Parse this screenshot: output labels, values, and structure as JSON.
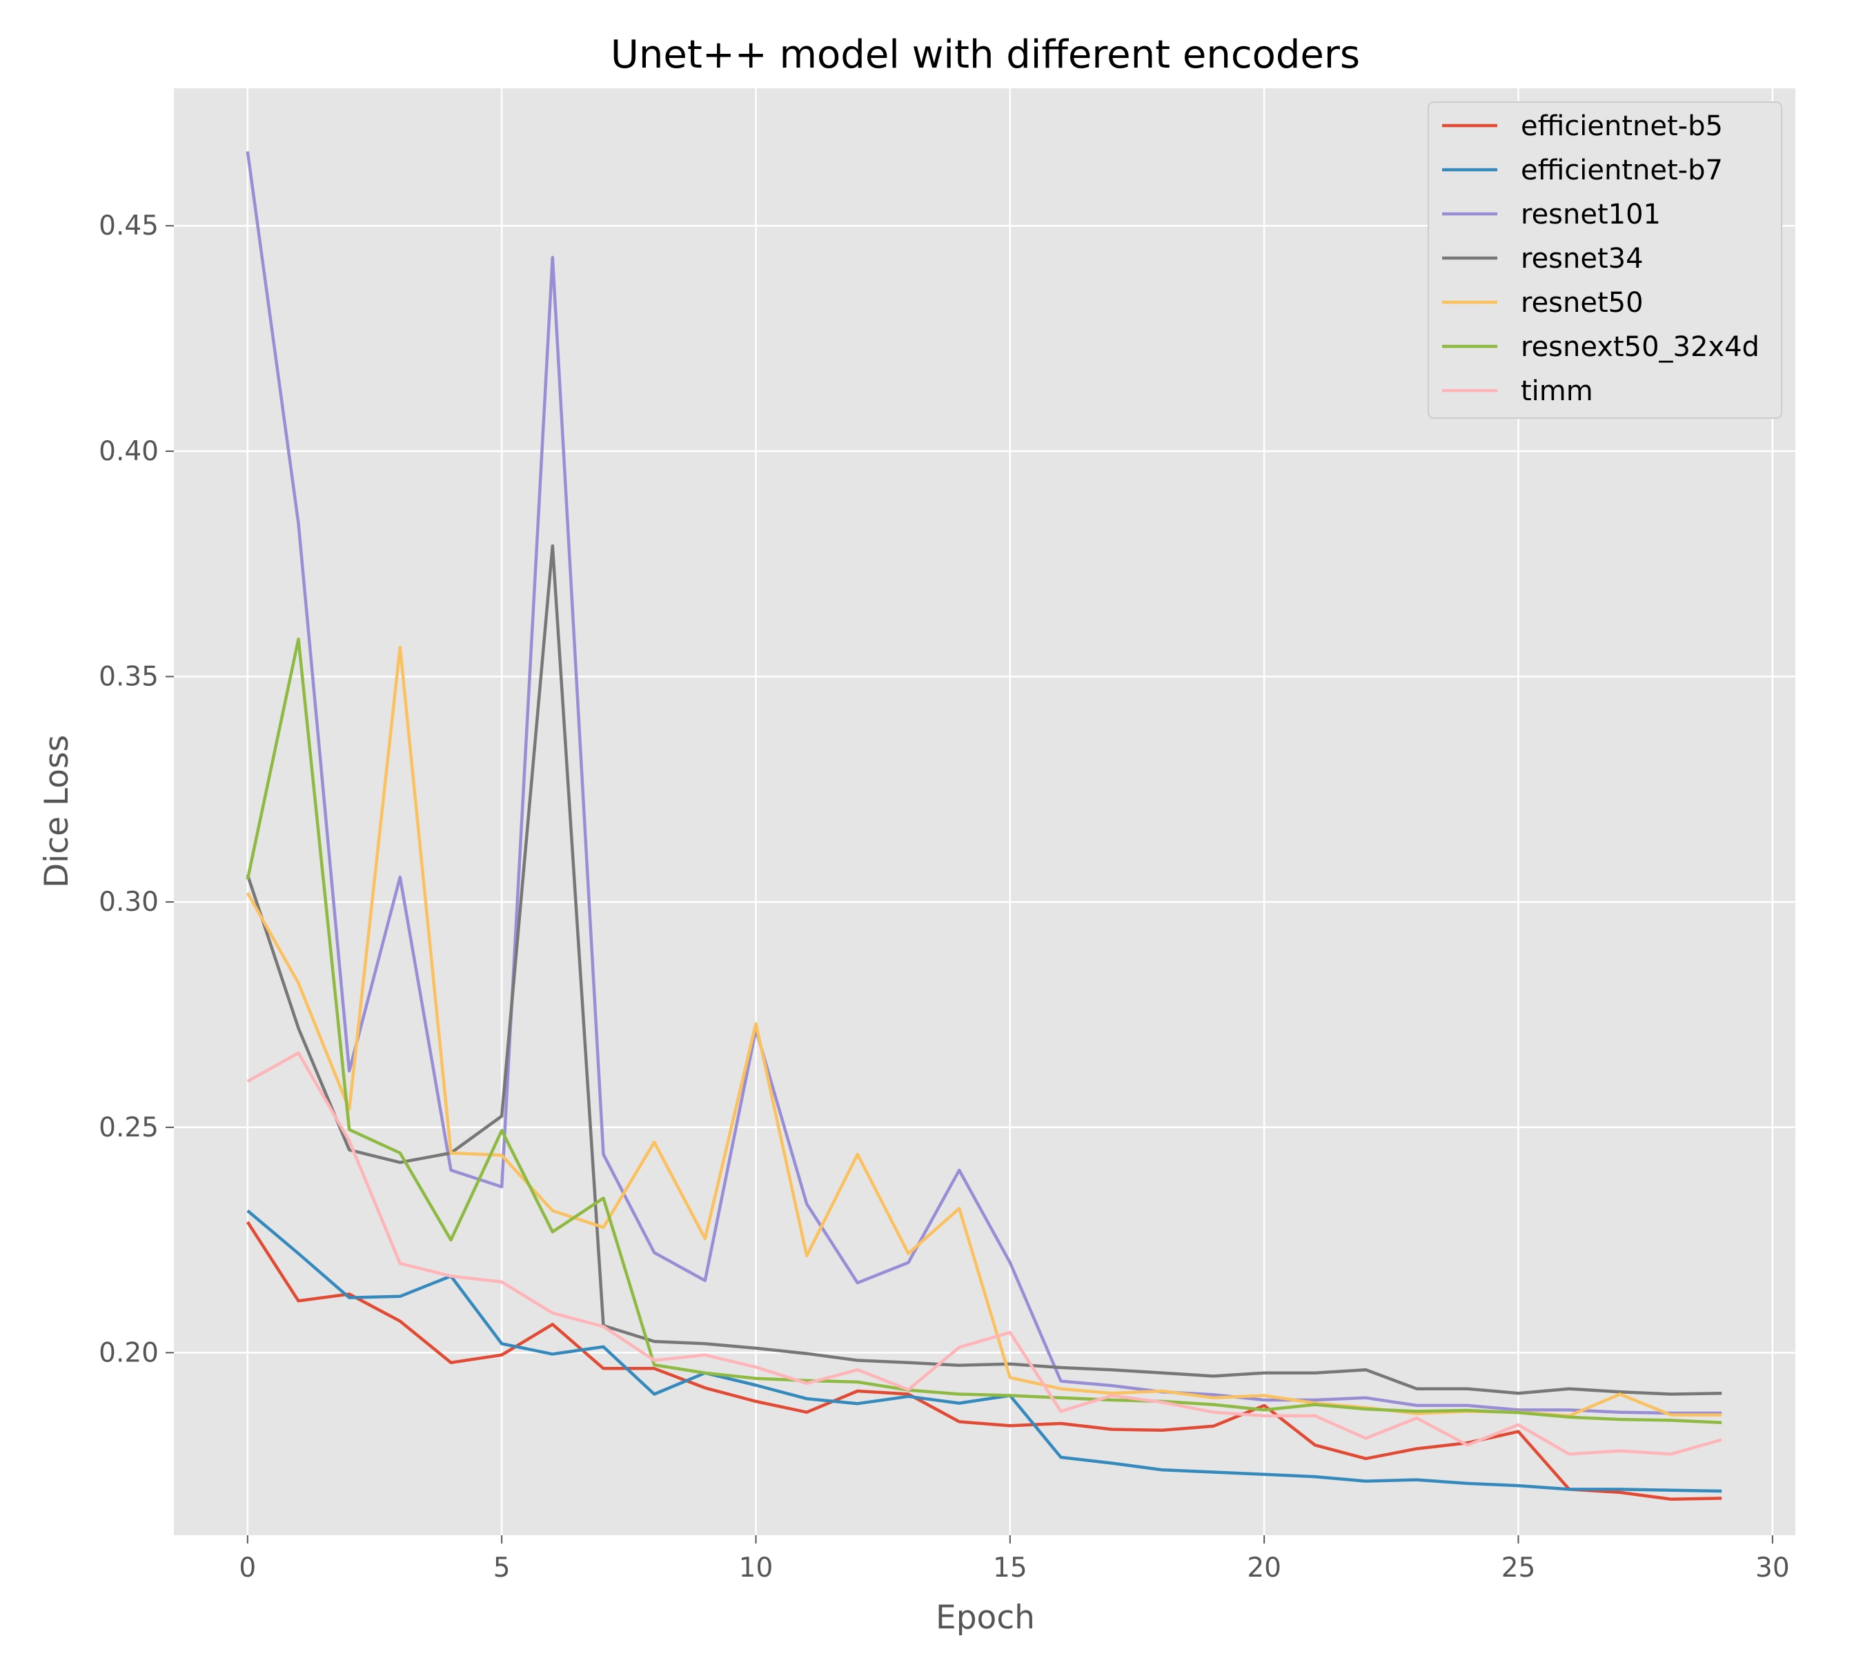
{
  "chart_data": {
    "type": "line",
    "title": "Unet++ model with different encoders",
    "xlabel": "Epoch",
    "ylabel": "Dice Loss",
    "xlim": [
      -1.45,
      30.45
    ],
    "ylim": [
      0.1595,
      0.4805
    ],
    "xticks": [
      0,
      5,
      10,
      15,
      20,
      25,
      30
    ],
    "yticks": [
      0.2,
      0.25,
      0.3,
      0.35,
      0.4,
      0.45
    ],
    "grid": true,
    "legend_position": "top-right",
    "x": [
      0,
      1,
      2,
      3,
      4,
      5,
      6,
      7,
      8,
      9,
      10,
      11,
      12,
      13,
      14,
      15,
      16,
      17,
      18,
      19,
      20,
      21,
      22,
      23,
      24,
      25,
      26,
      27,
      28,
      29
    ],
    "series": [
      {
        "name": "efficientnet-b5",
        "color": "#E24A33",
        "values": [
          0.229,
          0.2115,
          0.213,
          0.207,
          0.1978,
          0.1995,
          0.2063,
          0.1965,
          0.1965,
          0.1922,
          0.1892,
          0.1868,
          0.1915,
          0.1908,
          0.1847,
          0.1838,
          0.1843,
          0.183,
          0.1828,
          0.1837,
          0.1883,
          0.1795,
          0.1765,
          0.1787,
          0.18,
          0.1825,
          0.1697,
          0.169,
          0.1675,
          0.1677
        ]
      },
      {
        "name": "efficientnet-b7",
        "color": "#348ABD",
        "values": [
          0.2315,
          0.222,
          0.2122,
          0.2125,
          0.217,
          0.202,
          0.1997,
          0.2013,
          0.1908,
          0.1955,
          0.1928,
          0.1898,
          0.1887,
          0.1903,
          0.1888,
          0.1905,
          0.1768,
          0.1755,
          0.174,
          0.1735,
          0.173,
          0.1725,
          0.1715,
          0.1718,
          0.171,
          0.1705,
          0.1697,
          0.1697,
          0.1695,
          0.1693
        ]
      },
      {
        "name": "resnet101",
        "color": "#988ED5",
        "values": [
          0.4665,
          0.384,
          0.2625,
          0.3055,
          0.2405,
          0.2368,
          0.443,
          0.244,
          0.2222,
          0.216,
          0.2717,
          0.233,
          0.2155,
          0.22,
          0.2405,
          0.22,
          0.1937,
          0.1927,
          0.1913,
          0.1907,
          0.1895,
          0.1895,
          0.19,
          0.1883,
          0.1883,
          0.1873,
          0.1873,
          0.1868,
          0.1866,
          0.1866
        ]
      },
      {
        "name": "resnet34",
        "color": "#777777",
        "values": [
          0.306,
          0.272,
          0.245,
          0.2422,
          0.2443,
          0.2525,
          0.379,
          0.206,
          0.2025,
          0.202,
          0.201,
          0.1998,
          0.1983,
          0.1978,
          0.1972,
          0.1975,
          0.1967,
          0.1962,
          0.1955,
          0.1948,
          0.1955,
          0.1955,
          0.1962,
          0.192,
          0.192,
          0.191,
          0.192,
          0.1913,
          0.1908,
          0.191
        ]
      },
      {
        "name": "resnet50",
        "color": "#FBC15E",
        "values": [
          0.302,
          0.282,
          0.254,
          0.3565,
          0.2443,
          0.2438,
          0.2315,
          0.2278,
          0.2467,
          0.2253,
          0.273,
          0.2215,
          0.244,
          0.222,
          0.232,
          0.1945,
          0.192,
          0.191,
          0.1915,
          0.19,
          0.1905,
          0.1888,
          0.1878,
          0.1865,
          0.187,
          0.1868,
          0.186,
          0.1908,
          0.1862,
          0.1862
        ]
      },
      {
        "name": "resnext50_32x4d",
        "color": "#8EBA42",
        "values": [
          0.305,
          0.3583,
          0.2495,
          0.2443,
          0.225,
          0.2493,
          0.2268,
          0.2343,
          0.1973,
          0.1955,
          0.1943,
          0.1938,
          0.1935,
          0.1917,
          0.1908,
          0.1905,
          0.19,
          0.1895,
          0.1892,
          0.1885,
          0.1873,
          0.1885,
          0.1875,
          0.187,
          0.1872,
          0.1867,
          0.1857,
          0.1852,
          0.185,
          0.1845
        ]
      },
      {
        "name": "timm",
        "color": "#FFB5B8",
        "values": [
          0.2602,
          0.2665,
          0.247,
          0.2198,
          0.217,
          0.2157,
          0.2088,
          0.2058,
          0.1983,
          0.1995,
          0.1968,
          0.1932,
          0.1962,
          0.1918,
          0.2012,
          0.2045,
          0.187,
          0.1905,
          0.189,
          0.1868,
          0.186,
          0.186,
          0.181,
          0.1855,
          0.1795,
          0.184,
          0.1775,
          0.1782,
          0.1775,
          0.1807
        ]
      }
    ]
  }
}
